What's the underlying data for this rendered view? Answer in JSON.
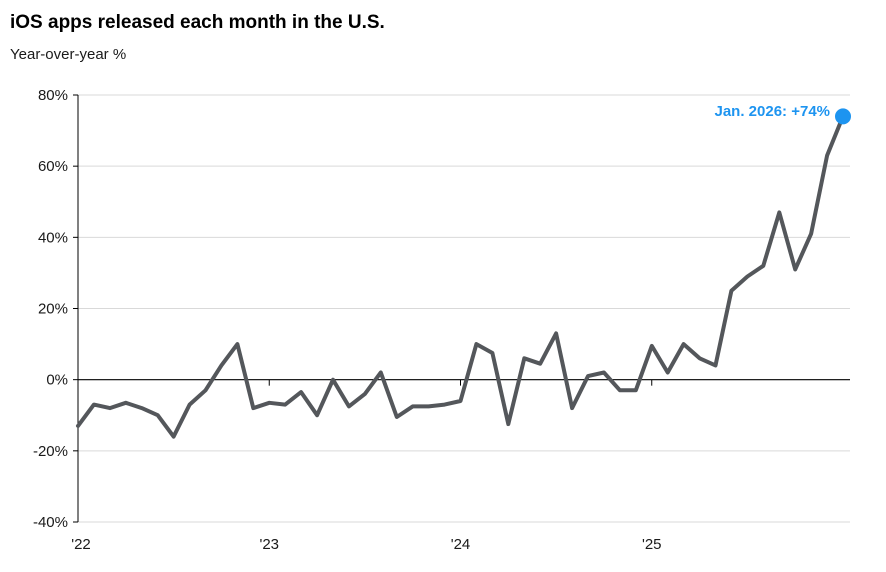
{
  "header": {
    "title": "iOS apps released each month in the U.S.",
    "subtitle": "Year-over-year %"
  },
  "annotation": {
    "label": "Jan. 2026: +74%"
  },
  "colors": {
    "line": "#54575b",
    "accent_blue": "#1d94f0",
    "grid": "#d9d9d9",
    "axis": "#000000"
  },
  "chart_data": {
    "type": "line",
    "title": "iOS apps released each month in the U.S.",
    "subtitle": "Year-over-year %",
    "x_start": "Jan 2022",
    "x_end": "Jan 2026",
    "interval": "monthly",
    "x_tick_labels": [
      "'22",
      "'23",
      "'24",
      "'25"
    ],
    "x_tick_month_indices": [
      0,
      12,
      24,
      36
    ],
    "y_ticks": [
      80,
      60,
      40,
      20,
      0,
      -20,
      -40
    ],
    "y_tick_labels": [
      "80%",
      "60%",
      "40%",
      "20%",
      "0%",
      "-20%",
      "-40%"
    ],
    "ylim": [
      -40,
      80
    ],
    "grid": "horizontal-only",
    "series": [
      {
        "name": "Year-over-year %",
        "values": [
          -13,
          -7,
          -8,
          -6.5,
          -8,
          -10,
          -16,
          -7,
          -3,
          4,
          10,
          -8,
          -6.5,
          -7,
          -3.5,
          -10,
          0,
          -7.5,
          -4,
          2,
          -10.5,
          -7.5,
          -7.5,
          -7,
          -6,
          10,
          7.5,
          -12.5,
          6,
          4.5,
          13,
          -8,
          1,
          2,
          -3,
          -3,
          9.5,
          2,
          10,
          6,
          4,
          25,
          29,
          32,
          47,
          31,
          41,
          63,
          74
        ]
      }
    ],
    "end_point": {
      "label": "Jan. 2026: +74%",
      "month": "Jan 2026",
      "value": 74
    },
    "legend": "none"
  }
}
